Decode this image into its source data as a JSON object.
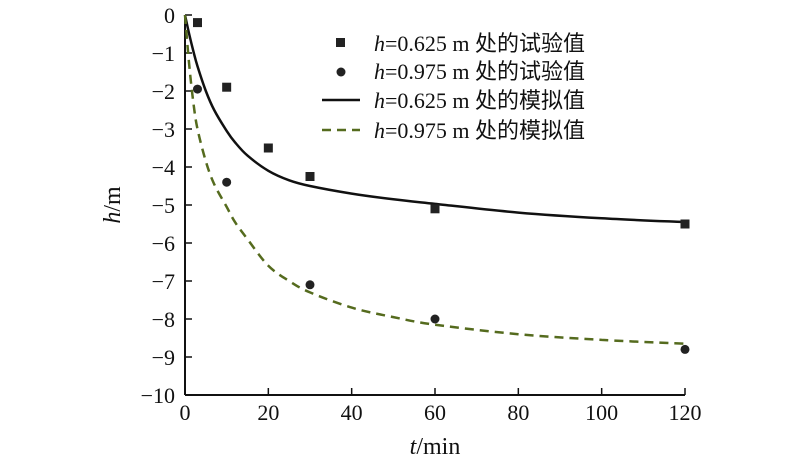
{
  "chart_data": {
    "type": "line",
    "xlabel_italic": "t",
    "xlabel_rest": "/min",
    "ylabel_italic": "h",
    "ylabel_rest": "/m",
    "xlim": [
      0,
      120
    ],
    "ylim": [
      -10,
      0
    ],
    "x_ticks": [
      0,
      20,
      40,
      60,
      80,
      100,
      120
    ],
    "y_ticks": [
      0,
      -1,
      -2,
      -3,
      -4,
      -5,
      -6,
      -7,
      -8,
      -9,
      -10
    ],
    "x_tick_labels": [
      "0",
      "20",
      "40",
      "60",
      "80",
      "100",
      "120"
    ],
    "y_tick_labels": [
      "0",
      "−1",
      "−2",
      "−3",
      "−4",
      "−5",
      "−6",
      "−7",
      "−8",
      "−9",
      "−10"
    ],
    "grid": false,
    "legend_position": "top-right",
    "series": [
      {
        "name_italic": "h",
        "name_rest": "=0.625 m 处的试验值",
        "kind": "scatter",
        "marker": "square",
        "color": "#222222",
        "x": [
          3,
          10,
          20,
          30,
          60,
          120
        ],
        "y": [
          -0.2,
          -1.9,
          -3.5,
          -4.25,
          -5.1,
          -5.5
        ]
      },
      {
        "name_italic": "h",
        "name_rest": "=0.975 m 处的试验值",
        "kind": "scatter",
        "marker": "circle",
        "color": "#222222",
        "x": [
          3,
          10,
          30,
          60,
          120
        ],
        "y": [
          -1.95,
          -4.4,
          -7.1,
          -8.0,
          -8.8
        ]
      },
      {
        "name_italic": "h",
        "name_rest": "=0.625 m 处的模拟值",
        "kind": "line",
        "dash": "solid",
        "color": "#111111",
        "x": [
          0,
          1,
          2,
          3,
          5,
          7,
          10,
          12,
          15,
          20,
          25,
          30,
          40,
          50,
          60,
          80,
          100,
          120
        ],
        "y": [
          0,
          -0.5,
          -0.95,
          -1.35,
          -2.0,
          -2.5,
          -3.05,
          -3.35,
          -3.7,
          -4.1,
          -4.35,
          -4.5,
          -4.7,
          -4.85,
          -4.97,
          -5.2,
          -5.35,
          -5.45
        ]
      },
      {
        "name_italic": "h",
        "name_rest": "=0.975 m 处的模拟值",
        "kind": "line",
        "dash": "dashed",
        "color": "#556b1e",
        "x": [
          0,
          1,
          2,
          3,
          5,
          7,
          10,
          12,
          15,
          20,
          25,
          30,
          40,
          50,
          60,
          80,
          100,
          120
        ],
        "y": [
          0,
          -1.3,
          -2.3,
          -3.0,
          -3.85,
          -4.45,
          -5.05,
          -5.45,
          -5.9,
          -6.6,
          -7.0,
          -7.3,
          -7.7,
          -7.95,
          -8.15,
          -8.4,
          -8.55,
          -8.65
        ]
      }
    ]
  }
}
